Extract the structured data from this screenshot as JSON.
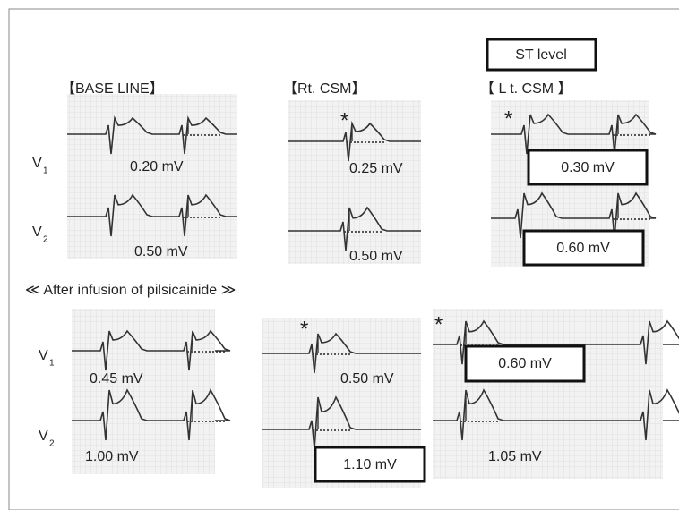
{
  "st_level_label": "ST level",
  "leads": [
    {
      "letter": "V",
      "subscript": "1"
    },
    {
      "letter": "V",
      "subscript": "2"
    }
  ],
  "before": {
    "panels": [
      {
        "title": "【BASE LINE】",
        "values": [
          "0.20 mV",
          "0.50 mV"
        ]
      },
      {
        "title": "【Rt. CSM】",
        "marker": "*",
        "values": [
          "0.25 mV",
          "0.50 mV"
        ]
      },
      {
        "title": "【 L t. CSM 】",
        "marker": "*",
        "values": [
          "0.30 mV",
          "0.60 mV"
        ]
      }
    ]
  },
  "after": {
    "title": "≪ After infusion of pilsicainide ≫",
    "panels": [
      {
        "values": [
          "0.45 mV",
          "1.00 mV"
        ]
      },
      {
        "marker": "*",
        "values": [
          "0.50 mV",
          "1.10 mV"
        ]
      },
      {
        "marker": "*",
        "values": [
          "0.60 mV",
          "1.05 mV"
        ]
      }
    ]
  }
}
